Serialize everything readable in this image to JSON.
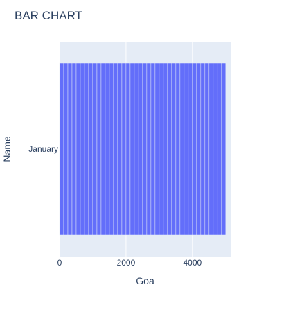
{
  "chart_data": {
    "type": "bar",
    "orientation": "horizontal",
    "barmode": "stack",
    "title": "BAR CHART",
    "xlabel": "Goa",
    "ylabel": "Name",
    "categories": [
      "January"
    ],
    "xlim": [
      0,
      5150
    ],
    "xticks": [
      0,
      2000,
      4000
    ],
    "xtick_labels": [
      "0",
      "2000",
      "4000"
    ],
    "segment_values": [
      125,
      125,
      125,
      125,
      125,
      125,
      125,
      125,
      125,
      125,
      125,
      125,
      125,
      125,
      125,
      125,
      125,
      125,
      125,
      125,
      125,
      125,
      125,
      125,
      125,
      125,
      125,
      125,
      125,
      125,
      125,
      125,
      125,
      125,
      125,
      125,
      125,
      125,
      125,
      125
    ],
    "total": 5000,
    "bar_color": "#636efa",
    "plot_bg_color": "#e5ecf6",
    "grid": true,
    "legend": "none"
  }
}
